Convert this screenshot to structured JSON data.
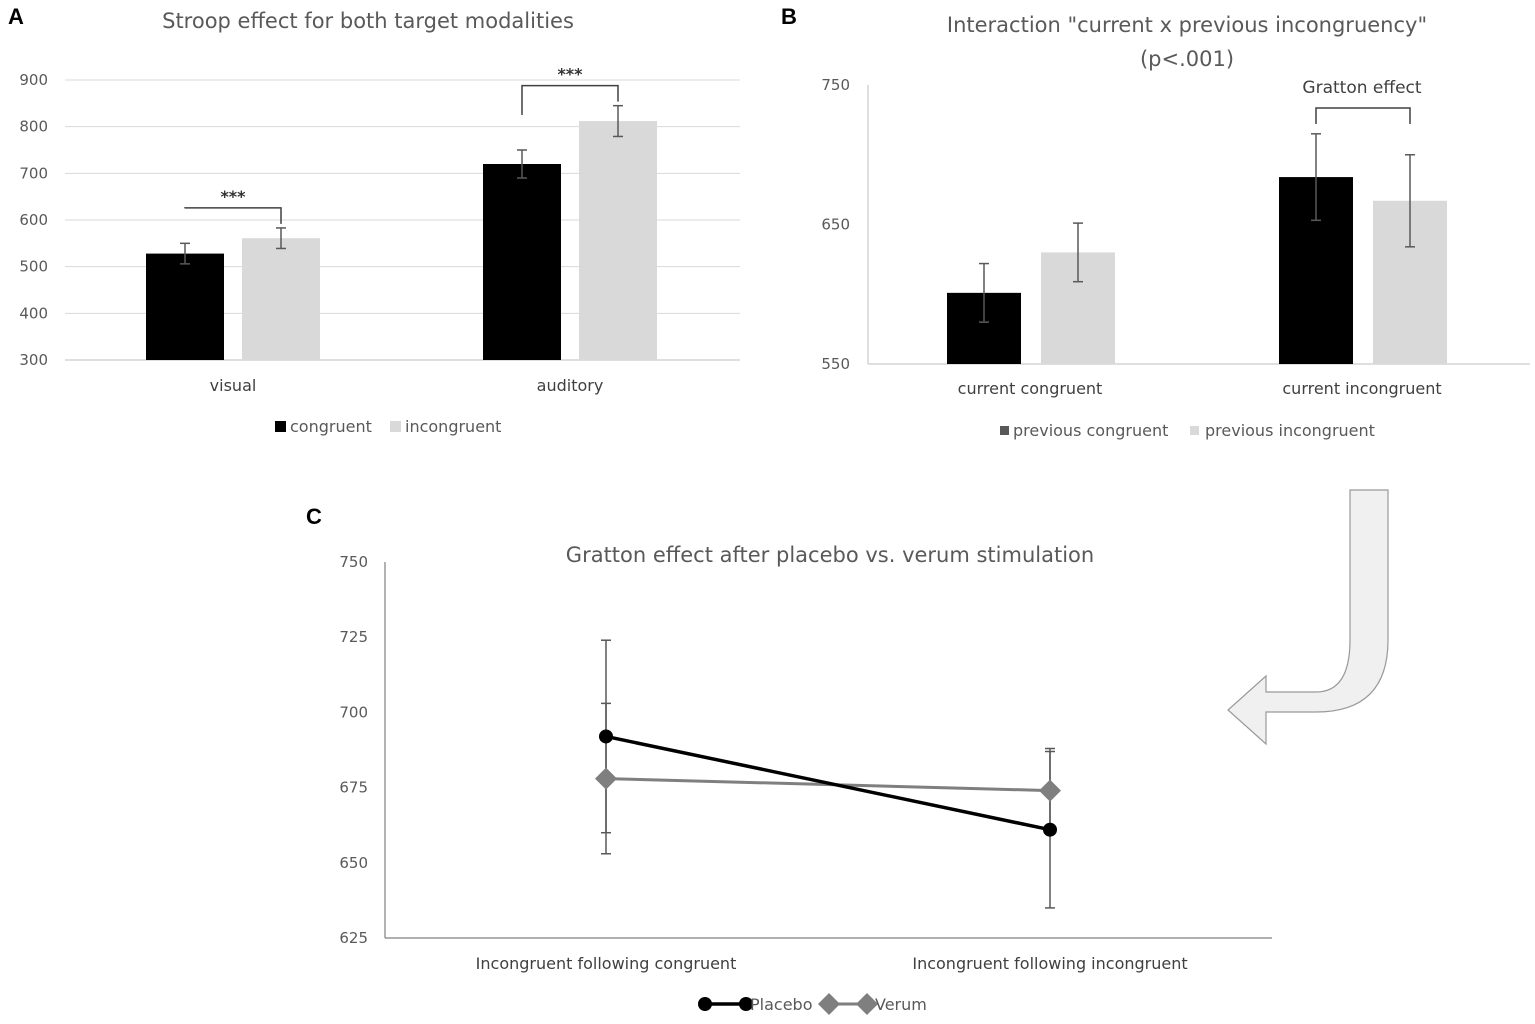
{
  "panels": {
    "a": "A",
    "b": "B",
    "c": "C"
  },
  "colors": {
    "black": "#000000",
    "light": "#d9d9d9",
    "verum": "#7f7f7f",
    "placebo": "#000000",
    "axis": "#bfbfbf",
    "arrow": "#f0f0f0",
    "arrow_edge": "#999999"
  },
  "chart_data": [
    {
      "id": "A",
      "type": "bar",
      "title": "Stroop effect for both target modalities",
      "categories": [
        "visual",
        "auditory"
      ],
      "series": [
        {
          "name": "congruent",
          "values": [
            528,
            720
          ],
          "errors": [
            22,
            30
          ]
        },
        {
          "name": "incongruent",
          "values": [
            561,
            812
          ],
          "errors": [
            22,
            33
          ]
        }
      ],
      "ylim": [
        300,
        900
      ],
      "yticks": [
        "300",
        "400",
        "500",
        "600",
        "700",
        "800",
        "900"
      ],
      "significance": [
        "***",
        "***"
      ],
      "legend": [
        "congruent",
        "incongruent"
      ],
      "legend_position": "bottom"
    },
    {
      "id": "B",
      "type": "bar",
      "title": "Interaction \"current x previous incongruency\"",
      "subtitle": "(p<.001)",
      "categories": [
        "current congruent",
        "current incongruent"
      ],
      "series": [
        {
          "name": "previous congruent",
          "values": [
            601,
            684
          ],
          "errors": [
            21,
            31
          ]
        },
        {
          "name": "previous incongruent",
          "values": [
            630,
            667
          ],
          "errors": [
            21,
            33
          ]
        }
      ],
      "ylim": [
        550,
        750
      ],
      "yticks": [
        "550",
        "650",
        "750"
      ],
      "annotation": "Gratton effect",
      "legend": [
        "previous congruent",
        "previous incongruent"
      ],
      "legend_position": "bottom"
    },
    {
      "id": "C",
      "type": "line",
      "title": "Gratton effect after placebo vs. verum stimulation",
      "categories": [
        "Incongruent following congruent",
        "Incongruent following incongruent"
      ],
      "series": [
        {
          "name": "Placebo",
          "values": [
            692,
            661
          ],
          "errors": [
            32,
            26
          ]
        },
        {
          "name": "Verum",
          "values": [
            678,
            674
          ],
          "errors": [
            25,
            14
          ]
        }
      ],
      "ylim": [
        625,
        750
      ],
      "yticks": [
        "625",
        "650",
        "675",
        "700",
        "725",
        "750"
      ],
      "legend": [
        "Placebo",
        "Verum"
      ],
      "legend_position": "bottom"
    }
  ]
}
